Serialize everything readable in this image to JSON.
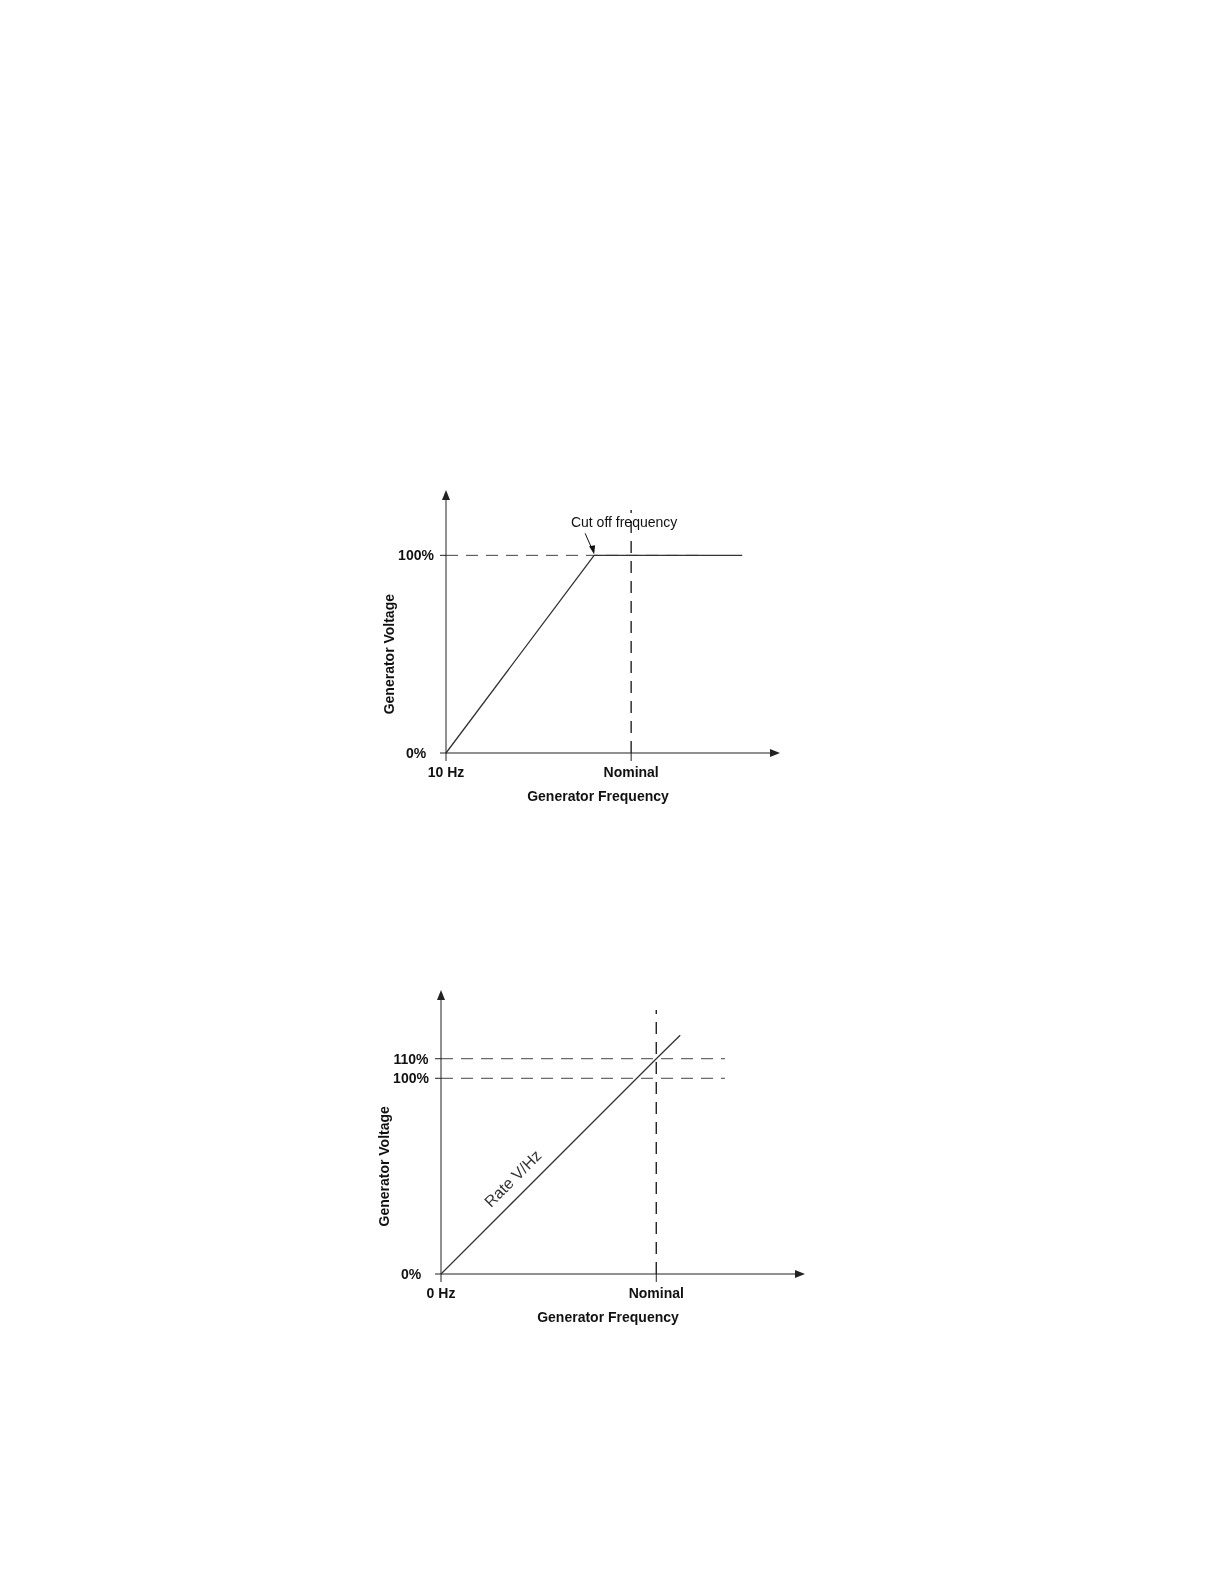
{
  "chart_data": [
    {
      "type": "line",
      "xlabel": "Generator Frequency",
      "ylabel": "Generator Voltage",
      "ylim": [
        0,
        128
      ],
      "yticks": [
        {
          "value": 0,
          "label": "0%"
        },
        {
          "value": 100,
          "label": "100%"
        }
      ],
      "categories": [
        "10 Hz",
        null,
        null,
        null,
        null,
        "Nominal",
        null,
        null,
        null
      ],
      "series": [
        {
          "color": "#333333",
          "values": [
            0,
            null,
            null,
            null,
            100,
            null,
            null,
            null,
            100
          ]
        }
      ],
      "ref_lines": [
        {
          "axis": "y",
          "value": 100,
          "line_style": "dashed",
          "color": "#444444"
        },
        {
          "axis": "x",
          "value": "Nominal",
          "line_style": "dashed",
          "color": "#222222"
        }
      ],
      "annotations": [
        {
          "text": "Cut off frequency",
          "y": 100
        }
      ]
    },
    {
      "type": "line",
      "xlabel": "Generator Frequency",
      "ylabel": "Generator Voltage",
      "ylim": [
        0,
        140
      ],
      "yticks": [
        {
          "value": 0,
          "label": "0%"
        },
        {
          "value": 100,
          "label": "100%"
        },
        {
          "value": 110,
          "label": "110%"
        }
      ],
      "categories": [
        "0 Hz",
        null,
        null,
        null,
        null,
        null,
        null,
        null,
        null,
        "Nominal",
        null
      ],
      "series": [
        {
          "name": "Rate V/Hz",
          "color": "#333333",
          "values": [
            0,
            null,
            null,
            null,
            null,
            null,
            null,
            null,
            null,
            110,
            122
          ]
        }
      ],
      "ref_lines": [
        {
          "axis": "y",
          "value": 100,
          "line_style": "dashed",
          "color": "#444444"
        },
        {
          "axis": "y",
          "value": 110,
          "line_style": "dashed",
          "color": "#444444"
        },
        {
          "axis": "x",
          "value": "Nominal",
          "line_style": "dashed",
          "color": "#222222"
        }
      ]
    }
  ]
}
